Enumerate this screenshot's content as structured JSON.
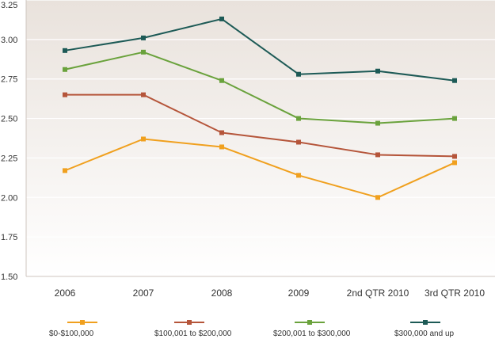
{
  "chart_data": {
    "type": "line",
    "categories": [
      "2006",
      "2007",
      "2008",
      "2009",
      "2nd QTR 2010",
      "3rd QTR 2010"
    ],
    "y_ticks": [
      "1.50",
      "1.75",
      "2.00",
      "2.25",
      "2.50",
      "2.75",
      "3.00",
      "3.25"
    ],
    "ylim": [
      1.5,
      3.25
    ],
    "grid": true,
    "legend_position": "bottom",
    "plot_background_gradient": [
      "#e9e2dc",
      "#ffffff"
    ],
    "series": [
      {
        "name": "$0-$100,000",
        "color": "#f0a01e",
        "values": [
          2.17,
          2.37,
          2.32,
          2.14,
          2.0,
          2.22
        ]
      },
      {
        "name": "$100,001 to $200,000",
        "color": "#b5553a",
        "values": [
          2.65,
          2.65,
          2.41,
          2.35,
          2.27,
          2.26
        ]
      },
      {
        "name": "$200,001 to $300,000",
        "color": "#6aa23c",
        "values": [
          2.81,
          2.92,
          2.74,
          2.5,
          2.47,
          2.5
        ]
      },
      {
        "name": "$300,000 and up",
        "color": "#1d5a56",
        "values": [
          2.93,
          3.01,
          3.13,
          2.78,
          2.8,
          2.74
        ]
      }
    ]
  }
}
